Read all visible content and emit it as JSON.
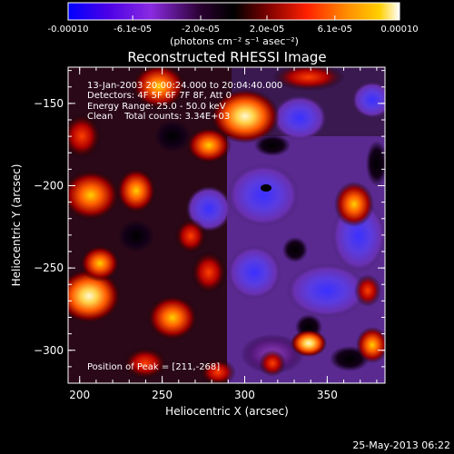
{
  "colorbar": {
    "ticks": [
      "-0.00010",
      "-6.1e-05",
      "-2.0e-05",
      "2.0e-05",
      "6.1e-05",
      "0.00010"
    ],
    "tick_values": [
      -0.0001,
      -6.1e-05,
      -2e-05,
      2e-05,
      6.1e-05,
      0.0001
    ],
    "range": [
      -0.0001,
      0.0001
    ],
    "units_label": "(photons cm⁻² s⁻¹ asec⁻²)",
    "colormap": [
      "#0000ff",
      "#5a00e0",
      "#8a2be2",
      "#200020",
      "#000000",
      "#8b0000",
      "#ff2000",
      "#ff8000",
      "#ffd000",
      "#ffffff"
    ]
  },
  "plot": {
    "title": "Reconstructed RHESSI Image",
    "xlabel": "Heliocentric X (arcsec)",
    "ylabel": "Heliocentric Y (arcsec)",
    "xlim": [
      193,
      385
    ],
    "ylim": [
      -320,
      -128
    ],
    "xticks": [
      "200",
      "250",
      "300",
      "350"
    ],
    "xtick_values": [
      200,
      250,
      300,
      350
    ],
    "yticks": [
      "−150",
      "−200",
      "−250",
      "−300"
    ],
    "ytick_values": [
      -150,
      -200,
      -250,
      -300
    ],
    "info_lines": [
      "13-Jan-2003 20:00:24.000 to 20:04:40.000",
      "Detectors: 4F 5F 6F 7F 8F, Att 0",
      "Energy Range: 25.0 - 50.0 keV",
      "Clean    Total counts: 3.34E+03"
    ],
    "peak_label": "Position of Peak = [211,-268]",
    "peak_position": [
      211,
      -268
    ]
  },
  "footer": {
    "timestamp": "25-May-2013 06:22"
  }
}
